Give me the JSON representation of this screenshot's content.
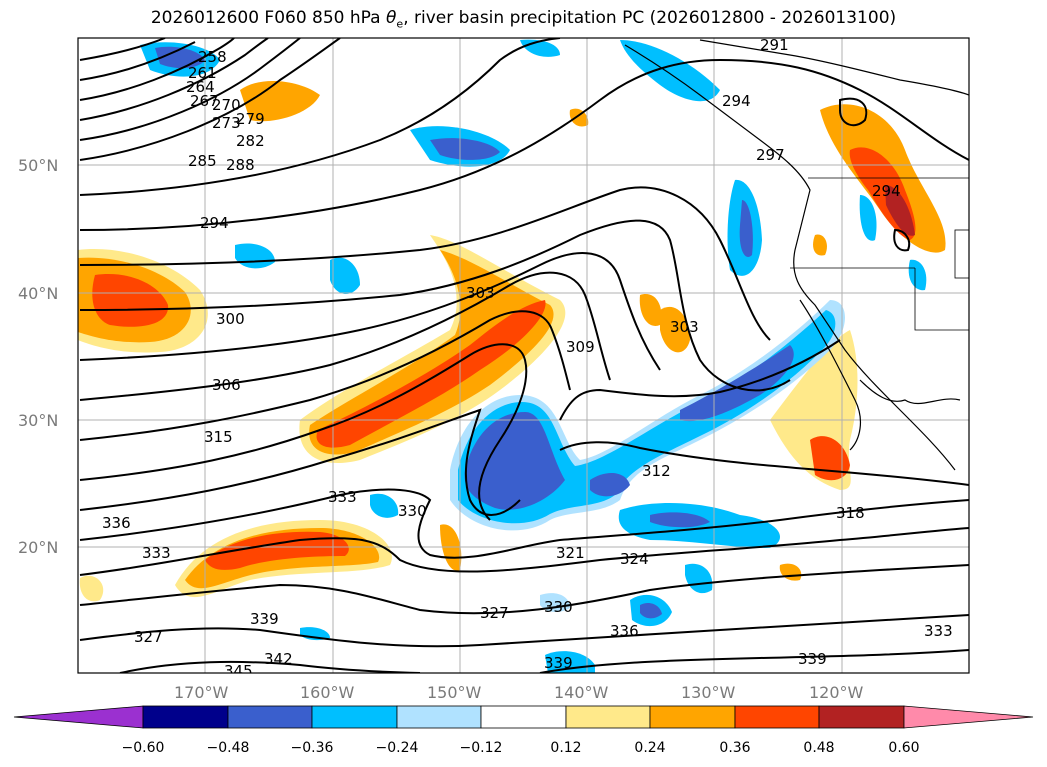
{
  "title": {
    "prefix": "2026012600 F060 850 hPa ",
    "symbol": "θ",
    "subscript": "e",
    "suffix": ", river basin precipitation PC (2026012800 - 2026013100)"
  },
  "map": {
    "lat_labels": [
      "50°N",
      "40°N",
      "30°N",
      "20°N"
    ],
    "lon_labels": [
      "170°W",
      "160°W",
      "150°W",
      "140°W",
      "130°W",
      "120°W"
    ],
    "contour_field": "850 hPa equivalent potential temperature",
    "contour_labels": [
      "258",
      "261",
      "264",
      "267",
      "270",
      "273",
      "279",
      "282",
      "285",
      "288",
      "291",
      "294",
      "297",
      "300",
      "303",
      "306",
      "309",
      "312",
      "315",
      "318",
      "321",
      "324",
      "327",
      "330",
      "333",
      "336",
      "339",
      "342",
      "345"
    ],
    "shading_field": "river basin precipitation PC"
  },
  "colorbar": {
    "ticks": [
      "−0.60",
      "−0.48",
      "−0.36",
      "−0.24",
      "−0.12",
      "0.12",
      "0.24",
      "0.36",
      "0.48",
      "0.60"
    ],
    "colors": [
      "#9b30d0",
      "#00008b",
      "#3a5fcd",
      "#00bfff",
      "#b0e2ff",
      "#ffffff",
      "#ffe98a",
      "#ffa500",
      "#ff4500",
      "#b22222",
      "#ff8aaa"
    ]
  },
  "colors": {
    "neg_strong": "#3a5fcd",
    "neg_mid": "#00bfff",
    "neg_weak": "#b0e2ff",
    "pos_weak": "#ffe98a",
    "pos_mid": "#ffa500",
    "pos_strong": "#ff4500",
    "pos_max": "#b22222"
  }
}
